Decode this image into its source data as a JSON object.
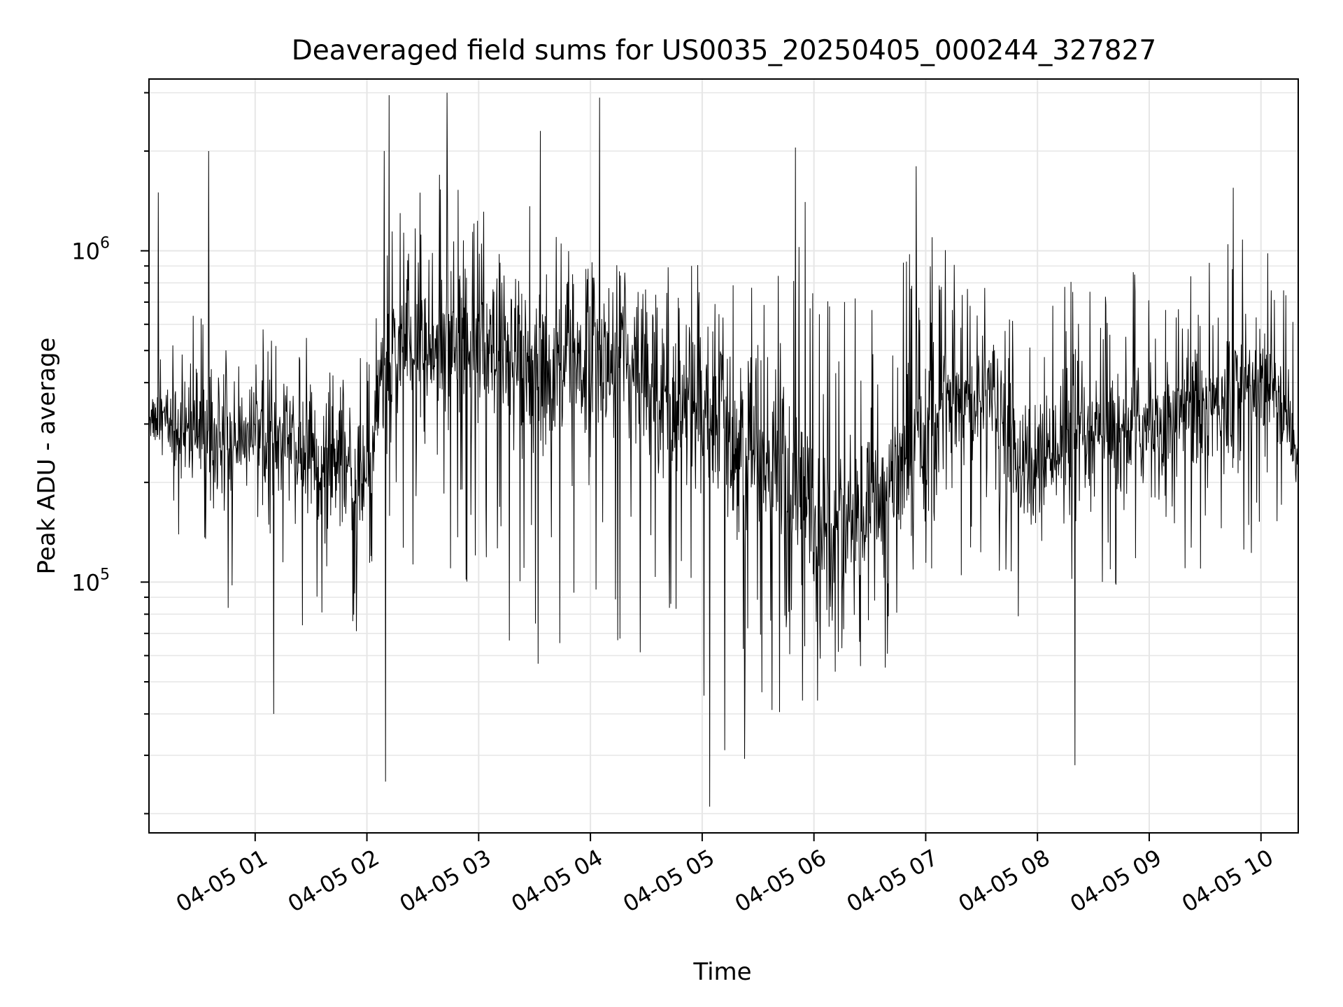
{
  "chart_data": {
    "type": "line",
    "title": "Deaveraged field sums for US0035_20250405_000244_327827",
    "xlabel": "Time",
    "ylabel": "Peak ADU - average",
    "yscale": "log",
    "grid": true,
    "xlim": [
      "04-05 00:03",
      "04-05 10:20"
    ],
    "ylim": [
      17500,
      3300000
    ],
    "x_ticks": [
      "04-05 01",
      "04-05 02",
      "04-05 03",
      "04-05 04",
      "04-05 05",
      "04-05 06",
      "04-05 07",
      "04-05 08",
      "04-05 09",
      "04-05 10"
    ],
    "y_ticks": [
      {
        "base": "10",
        "exp": "5",
        "value": 100000
      },
      {
        "base": "10",
        "exp": "6",
        "value": 1000000
      }
    ],
    "line_color": "#000000",
    "series": [
      {
        "x": [
          "04-05 00:03",
          "04-05 00:15",
          "04-05 00:30",
          "04-05 00:45",
          "04-05 01:00",
          "04-05 01:15",
          "04-05 01:30",
          "04-05 01:45",
          "04-05 02:00",
          "04-05 02:08",
          "04-05 02:20",
          "04-05 02:35",
          "04-05 02:50",
          "04-05 03:05",
          "04-05 03:20",
          "04-05 03:35",
          "04-05 03:50",
          "04-05 04:05",
          "04-05 04:20",
          "04-05 04:35",
          "04-05 04:50",
          "04-05 05:05",
          "04-05 05:20",
          "04-05 05:35",
          "04-05 05:50",
          "04-05 06:05",
          "04-05 06:20",
          "04-05 06:35",
          "04-05 06:50",
          "04-05 07:05",
          "04-05 07:20",
          "04-05 07:35",
          "04-05 07:50",
          "04-05 08:05",
          "04-05 08:20",
          "04-05 08:35",
          "04-05 08:50",
          "04-05 09:05",
          "04-05 09:20",
          "04-05 09:35",
          "04-05 09:50",
          "04-05 10:05",
          "04-05 10:20"
        ],
        "y": [
          320000,
          300000,
          280000,
          260000,
          290000,
          280000,
          240000,
          220000,
          200000,
          430000,
          480000,
          520000,
          560000,
          470000,
          450000,
          420000,
          460000,
          440000,
          430000,
          400000,
          360000,
          300000,
          260000,
          220000,
          180000,
          140000,
          150000,
          170000,
          220000,
          330000,
          360000,
          380000,
          220000,
          230000,
          250000,
          270000,
          290000,
          300000,
          330000,
          350000,
          380000,
          420000,
          240000
        ],
        "y_low": [
          200000,
          110000,
          90000,
          70000,
          130000,
          100000,
          60000,
          55000,
          70000,
          190000,
          90000,
          110000,
          90000,
          80000,
          60000,
          45000,
          55000,
          60000,
          65000,
          50000,
          40000,
          32000,
          28000,
          30000,
          40000,
          45000,
          48000,
          50000,
          65000,
          90000,
          100000,
          120000,
          70000,
          80000,
          90000,
          95000,
          100000,
          110000,
          105000,
          95000,
          110000,
          140000,
          160000
        ],
        "y_high": [
          480000,
          600000,
          650000,
          600000,
          620000,
          580000,
          560000,
          520000,
          560000,
          2300000,
          1200000,
          1800000,
          2000000,
          1500000,
          1600000,
          1400000,
          1200000,
          1000000,
          900000,
          850000,
          1200000,
          850000,
          800000,
          900000,
          1600000,
          1200000,
          700000,
          850000,
          1200000,
          1100000,
          900000,
          1100000,
          700000,
          800000,
          850000,
          750000,
          900000,
          950000,
          1000000,
          1050000,
          1100000,
          1050000,
          700000
        ],
        "spikes": [
          {
            "x": "04-05 00:08",
            "y": 1500000
          },
          {
            "x": "04-05 00:35",
            "y": 2000000
          },
          {
            "x": "04-05 01:10",
            "y": 40000
          },
          {
            "x": "04-05 02:10",
            "y": 25000
          },
          {
            "x": "04-05 02:12",
            "y": 2950000
          },
          {
            "x": "04-05 02:43",
            "y": 3000000
          },
          {
            "x": "04-05 03:33",
            "y": 2300000
          },
          {
            "x": "04-05 04:05",
            "y": 2900000
          },
          {
            "x": "04-05 05:04",
            "y": 21000
          },
          {
            "x": "04-05 05:50",
            "y": 2050000
          },
          {
            "x": "04-05 06:55",
            "y": 1800000
          },
          {
            "x": "04-05 08:20",
            "y": 28000
          },
          {
            "x": "04-05 09:45",
            "y": 1550000
          }
        ]
      }
    ]
  }
}
